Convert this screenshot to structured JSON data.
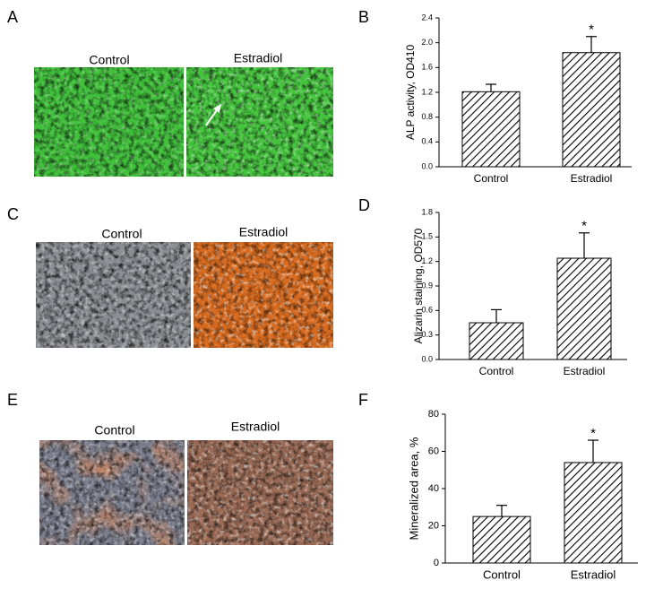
{
  "panels": [
    "A",
    "B",
    "C",
    "D",
    "E",
    "F"
  ],
  "images": [
    {
      "labels": [
        "Control",
        "Estradiol"
      ]
    },
    {
      "labels": [
        "Control",
        "Estradiol"
      ]
    },
    {
      "labels": [
        "Control",
        "Estradiol"
      ]
    }
  ],
  "chart_data": [
    {
      "type": "bar",
      "y_label": "ALP activity, OD410",
      "categories": [
        "Control",
        "Estradiol"
      ],
      "values": [
        1.21,
        1.84
      ],
      "errors": [
        0.12,
        0.26
      ],
      "color": "#ffffff",
      "hatch": "#000000",
      "ylim": [
        0,
        2.4
      ],
      "yticks": [
        {
          "value": 0,
          "label": "0.0"
        },
        0.4,
        0.8,
        1.2,
        1.6,
        {
          "value": 2,
          "label": "2.0"
        },
        2.4
      ],
      "annotations": [
        {
          "text": "*",
          "x": "Estradiol"
        }
      ]
    },
    {
      "type": "bar",
      "y_label": "Alizarin staining, OD570",
      "categories": [
        "Control",
        "Estradiol"
      ],
      "values": [
        0.45,
        1.24
      ],
      "errors": [
        0.16,
        0.31
      ],
      "color": "#ffffff",
      "hatch": "#000000",
      "ylim": [
        0,
        1.8
      ],
      "yticks": [
        {
          "value": 0,
          "label": "0.0"
        },
        0.3,
        0.6,
        0.9,
        1.2,
        1.5,
        1.8
      ],
      "annotations": [
        {
          "text": "*",
          "x": "Estradiol"
        }
      ]
    },
    {
      "type": "bar",
      "y_label": "Mineralized area, %",
      "categories": [
        "Control",
        "Estradiol"
      ],
      "values": [
        25,
        54
      ],
      "errors": [
        6,
        12
      ],
      "color": "#ffffff",
      "hatch": "#000000",
      "ylim": [
        0,
        80
      ],
      "yticks": [
        0,
        20,
        40,
        60,
        80
      ],
      "annotations": [
        {
          "text": "*",
          "x": "Estradiol"
        }
      ]
    }
  ]
}
